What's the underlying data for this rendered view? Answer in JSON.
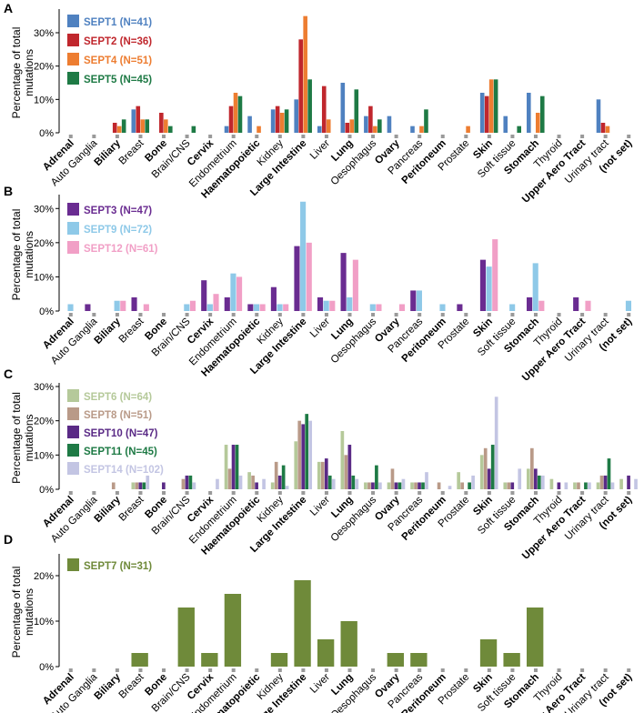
{
  "chart_data": [
    {
      "type": "bar",
      "panel_label": "A",
      "ylabel": [
        "Percentage of total",
        "mutations"
      ],
      "ylim": [
        0,
        36
      ],
      "yticks": [
        0,
        10,
        20,
        30
      ],
      "ytick_labels": [
        "0%",
        "10%",
        "20%",
        "30%"
      ],
      "categories": [
        "Adrenal",
        "Auto Ganglia",
        "Biliary",
        "Breast",
        "Bone",
        "Brain/CNS",
        "Cervix",
        "Endometrium",
        "Haematopoietic",
        "Kidney",
        "Large Intestine",
        "Liver",
        "Lung",
        "Oesophagus",
        "Ovary",
        "Pancreas",
        "Peritoneum",
        "Prostate",
        "Skin",
        "Soft tissue",
        "Stomach",
        "Thyroid",
        "Upper Aero Tract",
        "Urinary tract",
        "(not set)"
      ],
      "bold_categories": [
        "Adrenal",
        "Biliary",
        "Bone",
        "Cervix",
        "Haematopoietic",
        "Large Intestine",
        "Lung",
        "Ovary",
        "Peritoneum",
        "Skin",
        "Stomach",
        "Upper Aero Tract",
        "(not set)"
      ],
      "series": [
        {
          "name": "SEPT1 (N=41)",
          "color": "#4f81c0",
          "values": [
            0,
            0,
            0,
            7,
            0,
            0,
            0,
            2,
            5,
            7,
            10,
            2,
            15,
            5,
            5,
            2,
            0,
            0,
            12,
            5,
            12,
            0,
            0,
            10,
            0
          ]
        },
        {
          "name": "SEPT2 (N=36)",
          "color": "#c0272d",
          "values": [
            0,
            0,
            3,
            8,
            6,
            0,
            0,
            8,
            0,
            8,
            28,
            14,
            3,
            8,
            0,
            0,
            0,
            0,
            11,
            0,
            0,
            0,
            0,
            3,
            0
          ]
        },
        {
          "name": "SEPT4 (N=51)",
          "color": "#ed7d31",
          "values": [
            0,
            0,
            2,
            4,
            4,
            0,
            0,
            12,
            2,
            6,
            35,
            4,
            4,
            2,
            0,
            2,
            0,
            2,
            16,
            0,
            6,
            0,
            0,
            2,
            0
          ]
        },
        {
          "name": "SEPT5 (N=45)",
          "color": "#1e7a45",
          "values": [
            0,
            0,
            4,
            4,
            2,
            2,
            0,
            11,
            0,
            7,
            16,
            0,
            13,
            4,
            0,
            7,
            0,
            0,
            16,
            2,
            11,
            0,
            0,
            0,
            0
          ]
        }
      ]
    },
    {
      "type": "bar",
      "panel_label": "B",
      "ylabel": [
        "Percentage of total",
        "mutations"
      ],
      "ylim": [
        0,
        33
      ],
      "yticks": [
        0,
        10,
        20,
        30
      ],
      "ytick_labels": [
        "0%",
        "10%",
        "20%",
        "30%"
      ],
      "categories": [
        "Adrenal",
        "Auto Ganglia",
        "Biliary",
        "Breast",
        "Bone",
        "Brain/CNS",
        "Cervix",
        "Endometrium",
        "Haematopoietic",
        "Kidney",
        "Large Intestine",
        "Liver",
        "Lung",
        "Oesophagus",
        "Ovary",
        "Pancreas",
        "Peritoneum",
        "Prostate",
        "Skin",
        "Soft tissue",
        "Stomach",
        "Thyroid",
        "Upper Aero Tract",
        "Urinary tract",
        "(not set)"
      ],
      "bold_categories": [
        "Adrenal",
        "Biliary",
        "Bone",
        "Cervix",
        "Haematopoietic",
        "Large Intestine",
        "Lung",
        "Ovary",
        "Peritoneum",
        "Skin",
        "Stomach",
        "Upper Aero Tract",
        "(not set)"
      ],
      "series": [
        {
          "name": "SEPT3 (N=47)",
          "color": "#6a2c91",
          "values": [
            0,
            2,
            0,
            4,
            0,
            0,
            9,
            4,
            2,
            7,
            19,
            4,
            17,
            0,
            0,
            6,
            0,
            2,
            15,
            0,
            4,
            0,
            4,
            0,
            0
          ]
        },
        {
          "name": "SEPT9 (N=72)",
          "color": "#8ec9e8",
          "values": [
            2,
            0,
            3,
            0,
            0,
            2,
            2,
            11,
            2,
            2,
            32,
            3,
            4,
            2,
            0,
            6,
            2,
            0,
            13,
            2,
            14,
            0,
            0,
            0,
            3
          ]
        },
        {
          "name": "SEPT12 (N=61)",
          "color": "#f19fc6",
          "values": [
            0,
            0,
            3,
            2,
            0,
            3,
            5,
            10,
            2,
            2,
            20,
            3,
            15,
            2,
            2,
            0,
            0,
            0,
            21,
            0,
            3,
            0,
            3,
            0,
            0
          ]
        }
      ]
    },
    {
      "type": "bar",
      "panel_label": "C",
      "ylabel": [
        "Percentage of total",
        "mutations"
      ],
      "ylim": [
        0,
        30
      ],
      "yticks": [
        0,
        10,
        20,
        30
      ],
      "ytick_labels": [
        "0%",
        "10%",
        "20%",
        "30%"
      ],
      "categories": [
        "Adrenal",
        "Auto Ganglia",
        "Biliary",
        "Breast",
        "Bone",
        "Brain/CNS",
        "Cervix",
        "Endometrium",
        "Haematopoietic",
        "Kidney",
        "Large Intestine",
        "Liver",
        "Lung",
        "Oesophagus",
        "Ovary",
        "Pancreas",
        "Peritoneum",
        "Prostate",
        "Skin",
        "Soft tissue",
        "Stomach",
        "Thyroid",
        "Upper Aero Tract",
        "Urinary tract",
        "(not set)"
      ],
      "bold_categories": [
        "Adrenal",
        "Biliary",
        "Bone",
        "Cervix",
        "Haematopoietic",
        "Large Intestine",
        "Lung",
        "Ovary",
        "Peritoneum",
        "Skin",
        "Stomach",
        "Upper Aero Tract",
        "(not set)"
      ],
      "series": [
        {
          "name": "SEPT6 (N=64)",
          "color": "#b5c99a",
          "values": [
            0,
            0,
            0,
            2,
            0,
            0,
            0,
            13,
            5,
            2,
            14,
            8,
            17,
            2,
            2,
            2,
            0,
            5,
            10,
            2,
            6,
            3,
            2,
            2,
            3
          ]
        },
        {
          "name": "SEPT8 (N=51)",
          "color": "#b99a88",
          "values": [
            0,
            0,
            2,
            2,
            0,
            3,
            0,
            6,
            4,
            8,
            20,
            8,
            10,
            2,
            6,
            2,
            2,
            2,
            12,
            2,
            12,
            0,
            2,
            4,
            0
          ]
        },
        {
          "name": "SEPT10 (N=47)",
          "color": "#5a2a86",
          "values": [
            0,
            0,
            0,
            2,
            2,
            4,
            0,
            13,
            2,
            4,
            19,
            9,
            13,
            2,
            2,
            2,
            0,
            0,
            6,
            2,
            6,
            2,
            0,
            4,
            4
          ]
        },
        {
          "name": "SEPT11 (N=45)",
          "color": "#1e7a45",
          "values": [
            0,
            0,
            0,
            2,
            0,
            4,
            0,
            13,
            0,
            7,
            22,
            4,
            4,
            7,
            2,
            2,
            0,
            2,
            13,
            0,
            4,
            0,
            2,
            9,
            0
          ]
        },
        {
          "name": "SEPT14 (N=102)",
          "color": "#c3c5e3",
          "values": [
            0,
            0,
            0,
            4,
            0,
            2,
            3,
            4,
            3,
            1,
            20,
            3,
            3,
            2,
            3,
            5,
            1,
            4,
            27,
            6,
            4,
            2,
            2,
            2,
            3
          ]
        }
      ]
    },
    {
      "type": "bar",
      "panel_label": "D",
      "ylabel": [
        "Percentage of total",
        "mutations"
      ],
      "ylim": [
        0,
        24
      ],
      "yticks": [
        0,
        10,
        20
      ],
      "ytick_labels": [
        "0%",
        "10%",
        "20%"
      ],
      "categories": [
        "Adrenal",
        "Auto Ganglia",
        "Biliary",
        "Breast",
        "Bone",
        "Brain/CNS",
        "Cervix",
        "Endometrium",
        "Haematopoietic",
        "Kidney",
        "Large Intestine",
        "Liver",
        "Lung",
        "Oesophagus",
        "Ovary",
        "Pancreas",
        "Peritoneum",
        "Prostate",
        "Skin",
        "Soft tissue",
        "Stomach",
        "Thyroid",
        "Upper Aero Tract",
        "Urinary tract",
        "(not set)"
      ],
      "bold_categories": [
        "Adrenal",
        "Biliary",
        "Bone",
        "Cervix",
        "Haematopoietic",
        "Large Intestine",
        "Lung",
        "Ovary",
        "Peritoneum",
        "Skin",
        "Stomach",
        "Upper Aero Tract",
        "(not set)"
      ],
      "series": [
        {
          "name": "SEPT7 (N=31)",
          "color": "#6f8a3a",
          "values": [
            0,
            0,
            0,
            3,
            0,
            13,
            3,
            16,
            0,
            3,
            19,
            6,
            10,
            0,
            3,
            3,
            0,
            0,
            6,
            3,
            13,
            0,
            0,
            0,
            0
          ]
        }
      ]
    }
  ]
}
